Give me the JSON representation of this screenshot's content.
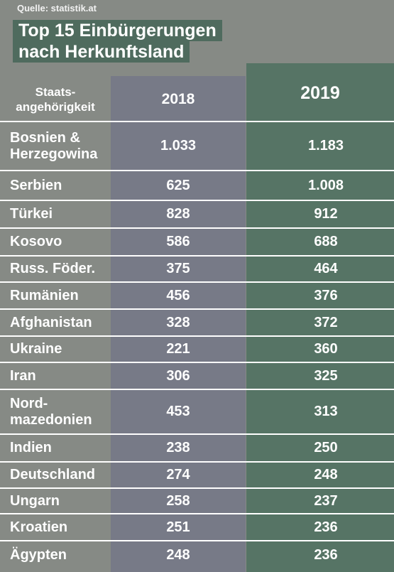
{
  "source": "Quelle: statistik.at",
  "title_line1": "Top 15 Einbürgerungen",
  "title_line2": "nach Herkunftsland",
  "chart_data": {
    "type": "table",
    "title": "Top 15 Einbürgerungen nach Herkunftsland",
    "columns": [
      "Staats-angehörigkeit",
      "2018",
      "2019"
    ],
    "header": {
      "country": "Staats-\nangehörigkeit",
      "y2018": "2018",
      "y2019": "2019"
    },
    "rows": [
      {
        "country": "Bosnien &\nHerzegowina",
        "y2018": "1.033",
        "y2019": "1.183"
      },
      {
        "country": "Serbien",
        "y2018": "625",
        "y2019": "1.008"
      },
      {
        "country": "Türkei",
        "y2018": "828",
        "y2019": "912"
      },
      {
        "country": "Kosovo",
        "y2018": "586",
        "y2019": "688"
      },
      {
        "country": "Russ. Föder.",
        "y2018": "375",
        "y2019": "464"
      },
      {
        "country": "Rumänien",
        "y2018": "456",
        "y2019": "376"
      },
      {
        "country": "Afghanistan",
        "y2018": "328",
        "y2019": "372"
      },
      {
        "country": "Ukraine",
        "y2018": "221",
        "y2019": "360"
      },
      {
        "country": "Iran",
        "y2018": "306",
        "y2019": "325"
      },
      {
        "country": "Nord-\nmazedonien",
        "y2018": "453",
        "y2019": "313"
      },
      {
        "country": "Indien",
        "y2018": "238",
        "y2019": "250"
      },
      {
        "country": "Deutschland",
        "y2018": "274",
        "y2019": "248"
      },
      {
        "country": "Ungarn",
        "y2018": "258",
        "y2019": "237"
      },
      {
        "country": "Kroatien",
        "y2018": "251",
        "y2019": "236"
      },
      {
        "country": "Ägypten",
        "y2018": "248",
        "y2019": "236"
      }
    ]
  },
  "colors": {
    "background": "#868a85",
    "title_background": "#4f6b5e",
    "column_2018": "#777a87",
    "column_2019": "#567465",
    "text": "#ffffff"
  }
}
